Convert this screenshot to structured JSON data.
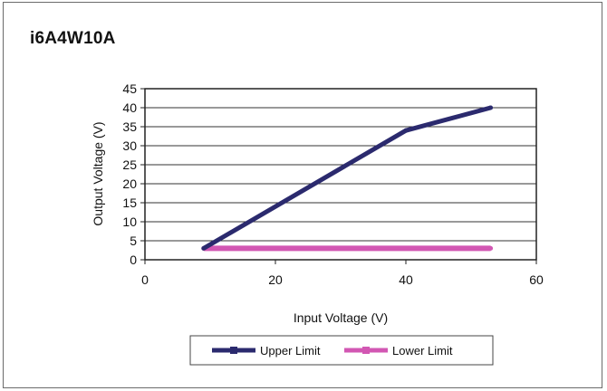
{
  "title": "i6A4W10A",
  "chart_data": {
    "type": "line",
    "title": "i6A4W10A",
    "xlabel": "Input Voltage (V)",
    "ylabel": "Output Voltage (V)",
    "xlim": [
      0,
      60
    ],
    "ylim": [
      0,
      45
    ],
    "xticks": [
      0,
      20,
      40,
      60
    ],
    "yticks": [
      0,
      5,
      10,
      15,
      20,
      25,
      30,
      35,
      40,
      45
    ],
    "grid": "horizontal",
    "legend_position": "bottom",
    "series": [
      {
        "name": "Upper Limit",
        "color": "#2b2a6e",
        "x": [
          9,
          40,
          53
        ],
        "y": [
          3,
          34,
          40
        ]
      },
      {
        "name": "Lower Limit",
        "color": "#d257b3",
        "x": [
          9,
          53
        ],
        "y": [
          3,
          3
        ]
      }
    ]
  }
}
